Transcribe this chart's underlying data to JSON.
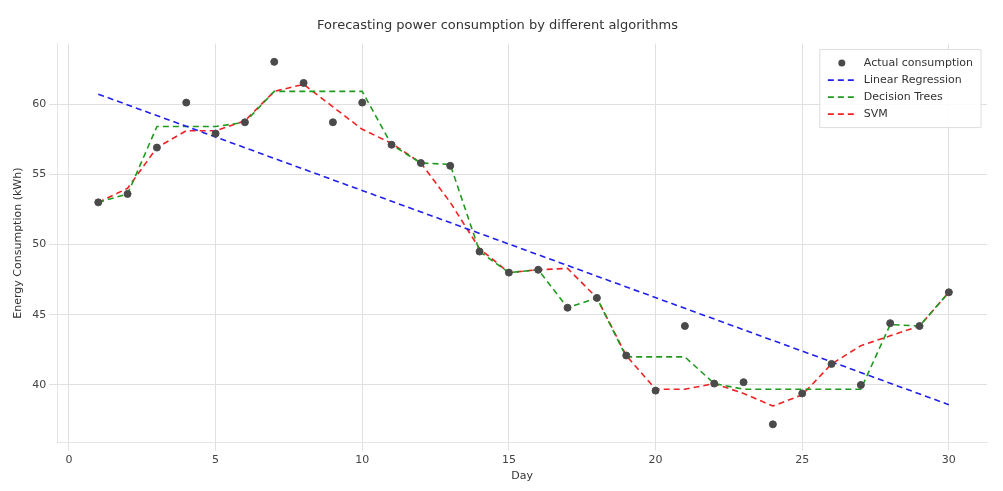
{
  "chart_data": {
    "type": "line",
    "title": "Forecasting power consumption by different algorithms",
    "xlabel": "Day",
    "ylabel": "Energy Consumption (kWh)",
    "x": [
      1,
      2,
      3,
      4,
      5,
      6,
      7,
      8,
      9,
      10,
      11,
      12,
      13,
      14,
      15,
      16,
      17,
      18,
      19,
      20,
      21,
      22,
      23,
      24,
      25,
      26,
      27,
      28,
      29,
      30
    ],
    "series": [
      {
        "name": "Actual consumption",
        "type": "scatter",
        "marker": "circle",
        "color": "#4a4a4a",
        "values": [
          53.0,
          53.6,
          56.9,
          60.1,
          57.9,
          58.7,
          63.0,
          61.5,
          58.7,
          60.1,
          57.1,
          55.8,
          55.6,
          49.5,
          48.0,
          48.2,
          45.5,
          46.2,
          42.1,
          39.6,
          44.2,
          40.1,
          40.2,
          37.2,
          39.4,
          41.5,
          40.0,
          44.4,
          44.2,
          46.6
        ]
      },
      {
        "name": "Linear Regression",
        "line_style": "dashed",
        "color": "#2020ee",
        "x": [
          1,
          30
        ],
        "values": [
          60.7,
          38.6
        ]
      },
      {
        "name": "Decision Trees",
        "line_style": "dashed",
        "color": "#1f9a1f",
        "values": [
          53.0,
          53.6,
          58.4,
          58.4,
          58.4,
          58.7,
          60.9,
          60.9,
          60.9,
          60.9,
          57.1,
          55.8,
          55.7,
          49.5,
          48.0,
          48.2,
          45.5,
          46.2,
          42.0,
          42.0,
          42.0,
          40.1,
          39.7,
          39.7,
          39.7,
          39.7,
          39.7,
          44.3,
          44.2,
          46.6
        ]
      },
      {
        "name": "SVM",
        "line_style": "dashed",
        "color": "#ee2222",
        "values": [
          53.0,
          54.0,
          56.9,
          58.1,
          58.1,
          58.8,
          60.9,
          61.4,
          59.8,
          58.2,
          57.2,
          55.8,
          53.0,
          49.7,
          48.0,
          48.2,
          48.3,
          46.2,
          42.1,
          39.7,
          39.7,
          40.1,
          39.4,
          38.5,
          39.3,
          41.5,
          42.8,
          43.5,
          44.2,
          46.6
        ]
      }
    ],
    "xlim": [
      -0.4,
      31.3
    ],
    "xticks": [
      0,
      5,
      10,
      15,
      20,
      25,
      30
    ],
    "ylim": [
      35.9,
      64.3
    ],
    "yticks": [
      40,
      45,
      50,
      55,
      60
    ],
    "grid": true,
    "legend": "top right"
  }
}
